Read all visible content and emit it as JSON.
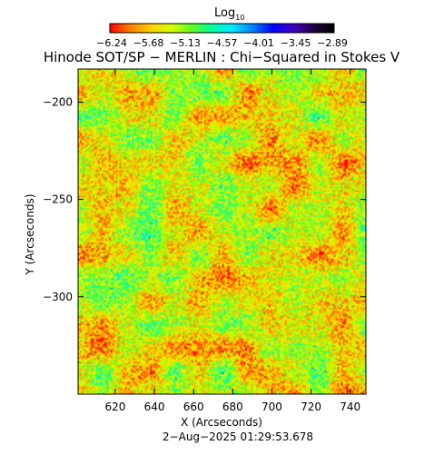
{
  "colorbar": {
    "label_main": "Log",
    "label_sub": "10",
    "ticks": [
      "−6.24",
      "−5.68",
      "−5.13",
      "−4.57",
      "−4.01",
      "−3.45",
      "−2.89"
    ],
    "colors": [
      "#ff0000",
      "#ff8000",
      "#ffd000",
      "#d8ff00",
      "#60ff20",
      "#00ffa0",
      "#00e8ff",
      "#0080ff",
      "#0000ff",
      "#4000c0",
      "#200040",
      "#000000"
    ]
  },
  "chart_data": {
    "type": "heatmap",
    "title": "Hinode SOT/SP − MERLIN : Chi−Squared in Stokes V",
    "xlabel": "X (Arcseconds)",
    "ylabel": "Y (Arcseconds)",
    "xlim": [
      601,
      748
    ],
    "ylim": [
      -350,
      -183
    ],
    "xticks": [
      620,
      640,
      660,
      680,
      700,
      720,
      740
    ],
    "yticks": [
      -200,
      -250,
      -300
    ],
    "ytick_labels": [
      "−200",
      "−250",
      "−300"
    ],
    "value_range": [
      -6.24,
      -2.89
    ],
    "value_label": "Log10 chi-squared",
    "footer": "2−Aug−2025 01:29:53.678"
  }
}
